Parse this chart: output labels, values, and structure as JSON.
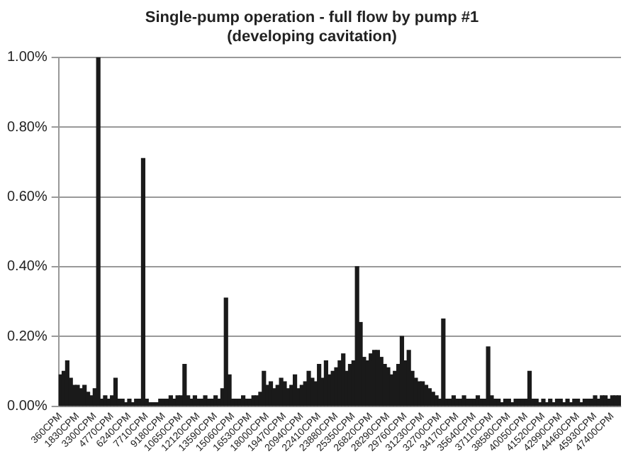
{
  "chart_data": {
    "type": "bar",
    "title": "Single-pump operation - full flow by pump #1",
    "subtitle": "(developing cavitation)",
    "categories": [
      "360CPM",
      null,
      null,
      null,
      null,
      "1830CPM",
      null,
      null,
      null,
      null,
      "3300CPM",
      null,
      null,
      null,
      null,
      "4770CPM",
      null,
      null,
      null,
      null,
      "6240CPM",
      null,
      null,
      null,
      null,
      "7710CPM",
      null,
      null,
      null,
      null,
      "9180CPM",
      null,
      null,
      null,
      null,
      "10650CPM",
      null,
      null,
      null,
      null,
      "12120CPM",
      null,
      null,
      null,
      null,
      "13590CPM",
      null,
      null,
      null,
      null,
      "15060CPM",
      null,
      null,
      null,
      null,
      "16530CPM",
      null,
      null,
      null,
      null,
      "18000CPM",
      null,
      null,
      null,
      null,
      "19470CPM",
      null,
      null,
      null,
      null,
      "20940CPM",
      null,
      null,
      null,
      null,
      "22410CPM",
      null,
      null,
      null,
      null,
      "23880CPM",
      null,
      null,
      null,
      null,
      "25350CPM",
      null,
      null,
      null,
      null,
      "26820CPM",
      null,
      null,
      null,
      null,
      "28290CPM",
      null,
      null,
      null,
      null,
      "29760CPM",
      null,
      null,
      null,
      null,
      "31230CPM",
      null,
      null,
      null,
      null,
      "32700CPM",
      null,
      null,
      null,
      null,
      "34170CPM",
      null,
      null,
      null,
      null,
      "35640CPM",
      null,
      null,
      null,
      null,
      "37110CPM",
      null,
      null,
      null,
      null,
      "38580CPM",
      null,
      null,
      null,
      null,
      "40050CPM",
      null,
      null,
      null,
      null,
      "41520CPM",
      null,
      null,
      null,
      null,
      "42990CPM",
      null,
      null,
      null,
      null,
      "44460CPM",
      null,
      null,
      null,
      null,
      "45930CPM",
      null,
      null,
      null,
      null,
      "47400CPM",
      null,
      null
    ],
    "values": [
      0.09,
      0.1,
      0.13,
      0.08,
      0.06,
      0.06,
      0.05,
      0.06,
      0.04,
      0.03,
      0.05,
      1.0,
      0.02,
      0.03,
      0.02,
      0.03,
      0.08,
      0.02,
      0.02,
      0.01,
      0.02,
      0.01,
      0.02,
      0.02,
      0.71,
      0.02,
      0.01,
      0.01,
      0.01,
      0.02,
      0.02,
      0.02,
      0.03,
      0.02,
      0.03,
      0.03,
      0.12,
      0.03,
      0.02,
      0.03,
      0.02,
      0.02,
      0.03,
      0.02,
      0.02,
      0.03,
      0.02,
      0.05,
      0.31,
      0.09,
      0.02,
      0.02,
      0.02,
      0.03,
      0.02,
      0.02,
      0.03,
      0.03,
      0.04,
      0.1,
      0.06,
      0.07,
      0.05,
      0.06,
      0.08,
      0.07,
      0.05,
      0.06,
      0.09,
      0.05,
      0.06,
      0.07,
      0.1,
      0.08,
      0.07,
      0.12,
      0.08,
      0.13,
      0.09,
      0.1,
      0.11,
      0.13,
      0.15,
      0.1,
      0.12,
      0.13,
      0.4,
      0.24,
      0.14,
      0.13,
      0.15,
      0.16,
      0.16,
      0.14,
      0.12,
      0.11,
      0.09,
      0.1,
      0.12,
      0.2,
      0.13,
      0.16,
      0.1,
      0.08,
      0.07,
      0.07,
      0.06,
      0.05,
      0.04,
      0.03,
      0.02,
      0.25,
      0.02,
      0.02,
      0.03,
      0.02,
      0.02,
      0.03,
      0.02,
      0.02,
      0.02,
      0.03,
      0.02,
      0.02,
      0.17,
      0.03,
      0.02,
      0.02,
      0.01,
      0.02,
      0.02,
      0.01,
      0.02,
      0.02,
      0.02,
      0.02,
      0.1,
      0.02,
      0.02,
      0.01,
      0.02,
      0.01,
      0.02,
      0.01,
      0.02,
      0.02,
      0.01,
      0.02,
      0.01,
      0.02,
      0.02,
      0.01,
      0.02,
      0.02,
      0.02,
      0.03,
      0.02,
      0.03,
      0.03,
      0.02,
      0.03,
      0.03,
      0.03
    ],
    "color": "#1a1a1a",
    "ylim": [
      0,
      1
    ],
    "yticks": [
      {
        "value": 0,
        "label": "0.00%"
      },
      {
        "value": 0.2,
        "label": "0.20%"
      },
      {
        "value": 0.4,
        "label": "0.40%"
      },
      {
        "value": 0.6,
        "label": "0.60%"
      },
      {
        "value": 0.8,
        "label": "0.80%"
      },
      {
        "value": 1,
        "label": "1.00%"
      }
    ],
    "grid": "y",
    "legend": false
  }
}
